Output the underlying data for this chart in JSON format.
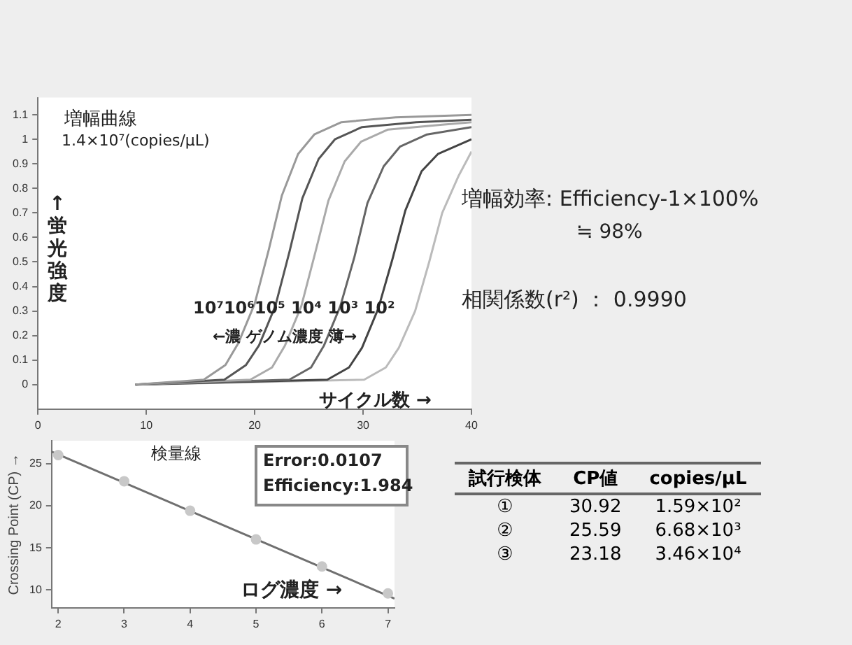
{
  "chart_data": [
    {
      "type": "line",
      "title": "増幅曲線",
      "xlabel": "サイクル数 →",
      "ylabel": "↑蛍光強度",
      "marker": "none",
      "xlim": [
        0,
        40
      ],
      "xticks": [
        0,
        10,
        20,
        30,
        40
      ],
      "ylim": [
        -0.1,
        1.17
      ],
      "yticks": [
        0,
        0.1,
        0.2,
        0.3,
        0.4,
        0.5,
        0.6,
        0.7,
        0.8,
        0.9,
        1,
        1.1
      ],
      "grid": false,
      "legend": false,
      "annotations": [
        "1.4×10⁷(copies/μL)",
        "10⁷10⁶10⁵ 10⁴ 10³ 10²",
        "←濃 ゲノム濃度 薄→"
      ],
      "series": [
        {
          "color": "#999999",
          "x": [
            9,
            15.3,
            17.3,
            18.5,
            20,
            21.3,
            22.5,
            24,
            25.5,
            28,
            33,
            40
          ],
          "values": [
            0,
            0.02,
            0.08,
            0.17,
            0.33,
            0.55,
            0.77,
            0.94,
            1.02,
            1.07,
            1.09,
            1.1
          ]
        },
        {
          "color": "#555555",
          "x": [
            9,
            17.2,
            19.2,
            20.4,
            21.9,
            23.2,
            24.4,
            25.9,
            27.4,
            29.9,
            34.9,
            40
          ],
          "values": [
            0,
            0.02,
            0.08,
            0.16,
            0.32,
            0.54,
            0.76,
            0.92,
            1.0,
            1.05,
            1.07,
            1.08
          ]
        },
        {
          "color": "#aaaaaa",
          "x": [
            9,
            19.6,
            21.6,
            22.8,
            24.3,
            25.6,
            26.8,
            28.3,
            29.8,
            32.3,
            37.3,
            40
          ],
          "values": [
            0,
            0.02,
            0.07,
            0.16,
            0.32,
            0.54,
            0.75,
            0.91,
            0.99,
            1.04,
            1.06,
            1.07
          ]
        },
        {
          "color": "#666666",
          "x": [
            9,
            23.2,
            25.2,
            26.4,
            27.9,
            29.2,
            30.4,
            31.9,
            33.4,
            35.9,
            40
          ],
          "values": [
            0,
            0.02,
            0.07,
            0.16,
            0.32,
            0.52,
            0.74,
            0.89,
            0.97,
            1.02,
            1.05
          ]
        },
        {
          "color": "#444444",
          "x": [
            9,
            26.7,
            28.7,
            29.9,
            31.4,
            32.7,
            33.9,
            35.4,
            36.9,
            40
          ],
          "values": [
            0,
            0.02,
            0.07,
            0.15,
            0.31,
            0.51,
            0.71,
            0.87,
            0.94,
            1.0
          ]
        },
        {
          "color": "#bbbbbb",
          "x": [
            9,
            30.1,
            32.1,
            33.3,
            34.8,
            36.1,
            37.3,
            38.8,
            40
          ],
          "values": [
            0,
            0.02,
            0.07,
            0.15,
            0.3,
            0.5,
            0.7,
            0.85,
            0.95
          ]
        }
      ]
    },
    {
      "type": "scatter",
      "title": "検量線",
      "xlabel": "ログ濃度 →",
      "ylabel": "Crossing Point (CP) →",
      "grid": false,
      "legend": false,
      "xlim": [
        1.9,
        7.1
      ],
      "xticks": [
        2,
        3,
        4,
        5,
        6,
        7
      ],
      "ylim": [
        7.9,
        27.7
      ],
      "yticks": [
        10,
        15,
        20,
        25
      ],
      "annotations": [
        "Error:0.0107",
        "Efficiency:1.984"
      ],
      "series": [
        {
          "type": "scatter",
          "marker": "circle",
          "color": "#c8c8c8",
          "x": [
            2,
            3,
            4,
            5,
            6,
            7
          ],
          "values": [
            26,
            22.9,
            19.4,
            16.0,
            12.8,
            9.6
          ]
        },
        {
          "type": "line",
          "marker": "none",
          "color": "#707070",
          "x": [
            1.9,
            7.1
          ],
          "values": [
            26.4,
            9.0
          ]
        }
      ]
    },
    {
      "type": "other",
      "annotations": [
        "増幅効率: Efficiency-1×100%",
        "≒ 98%",
        "相関係数(r²) ： 0.9990"
      ]
    },
    {
      "type": "other",
      "annotations": [
        "試行検体",
        "CP値",
        "copies/μL",
        "①",
        "30.92",
        "1.59×10²",
        "②",
        "25.59",
        "6.68×10³",
        "③",
        "23.18",
        "3.46×10⁴"
      ]
    }
  ]
}
